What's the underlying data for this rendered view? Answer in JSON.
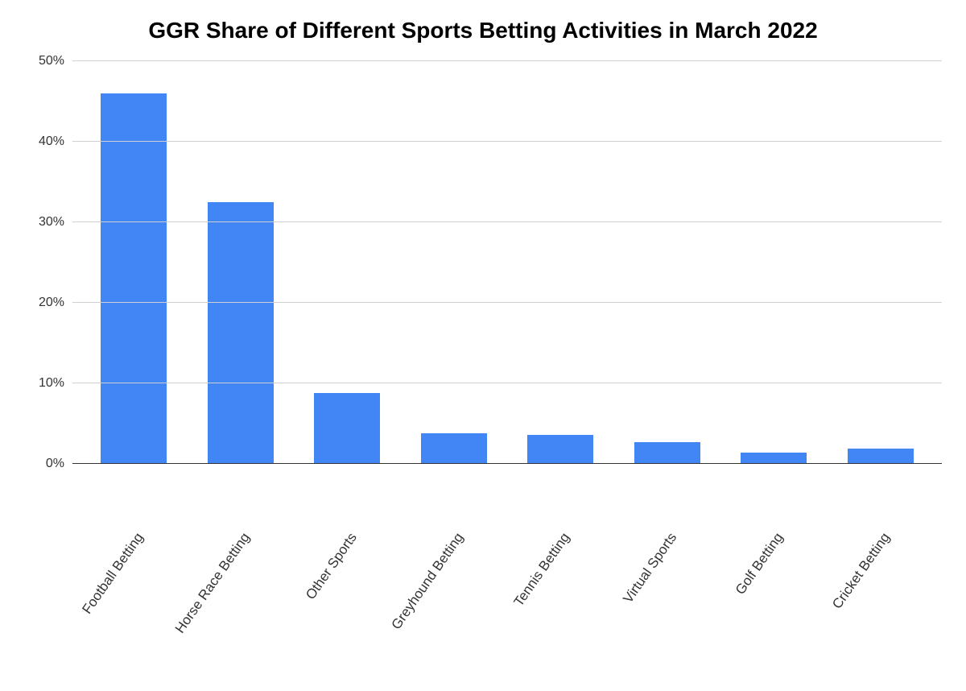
{
  "chart": {
    "type": "bar",
    "title": "GGR Share of Different Sports Betting Activities in March 2022",
    "title_fontsize": 28,
    "categories": [
      "Football Betting",
      "Horse Race Betting",
      "Other Sports",
      "Greyhound Betting",
      "Tennis Betting",
      "Virtual Sports",
      "Golf Betting",
      "Cricket Betting"
    ],
    "values": [
      46,
      32.5,
      8.8,
      3.7,
      3.5,
      2.6,
      1.3,
      1.8
    ],
    "bar_color": "#4285f4",
    "ylim": [
      0,
      50
    ],
    "ytick_step": 10,
    "ytick_labels": [
      "0%",
      "10%",
      "20%",
      "30%",
      "40%",
      "50%"
    ],
    "background_color": "#ffffff",
    "grid_color": "#d0d0d0",
    "axis_color": "#333333",
    "label_fontsize": 17,
    "bar_width": 0.62,
    "x_label_rotation": -55
  }
}
